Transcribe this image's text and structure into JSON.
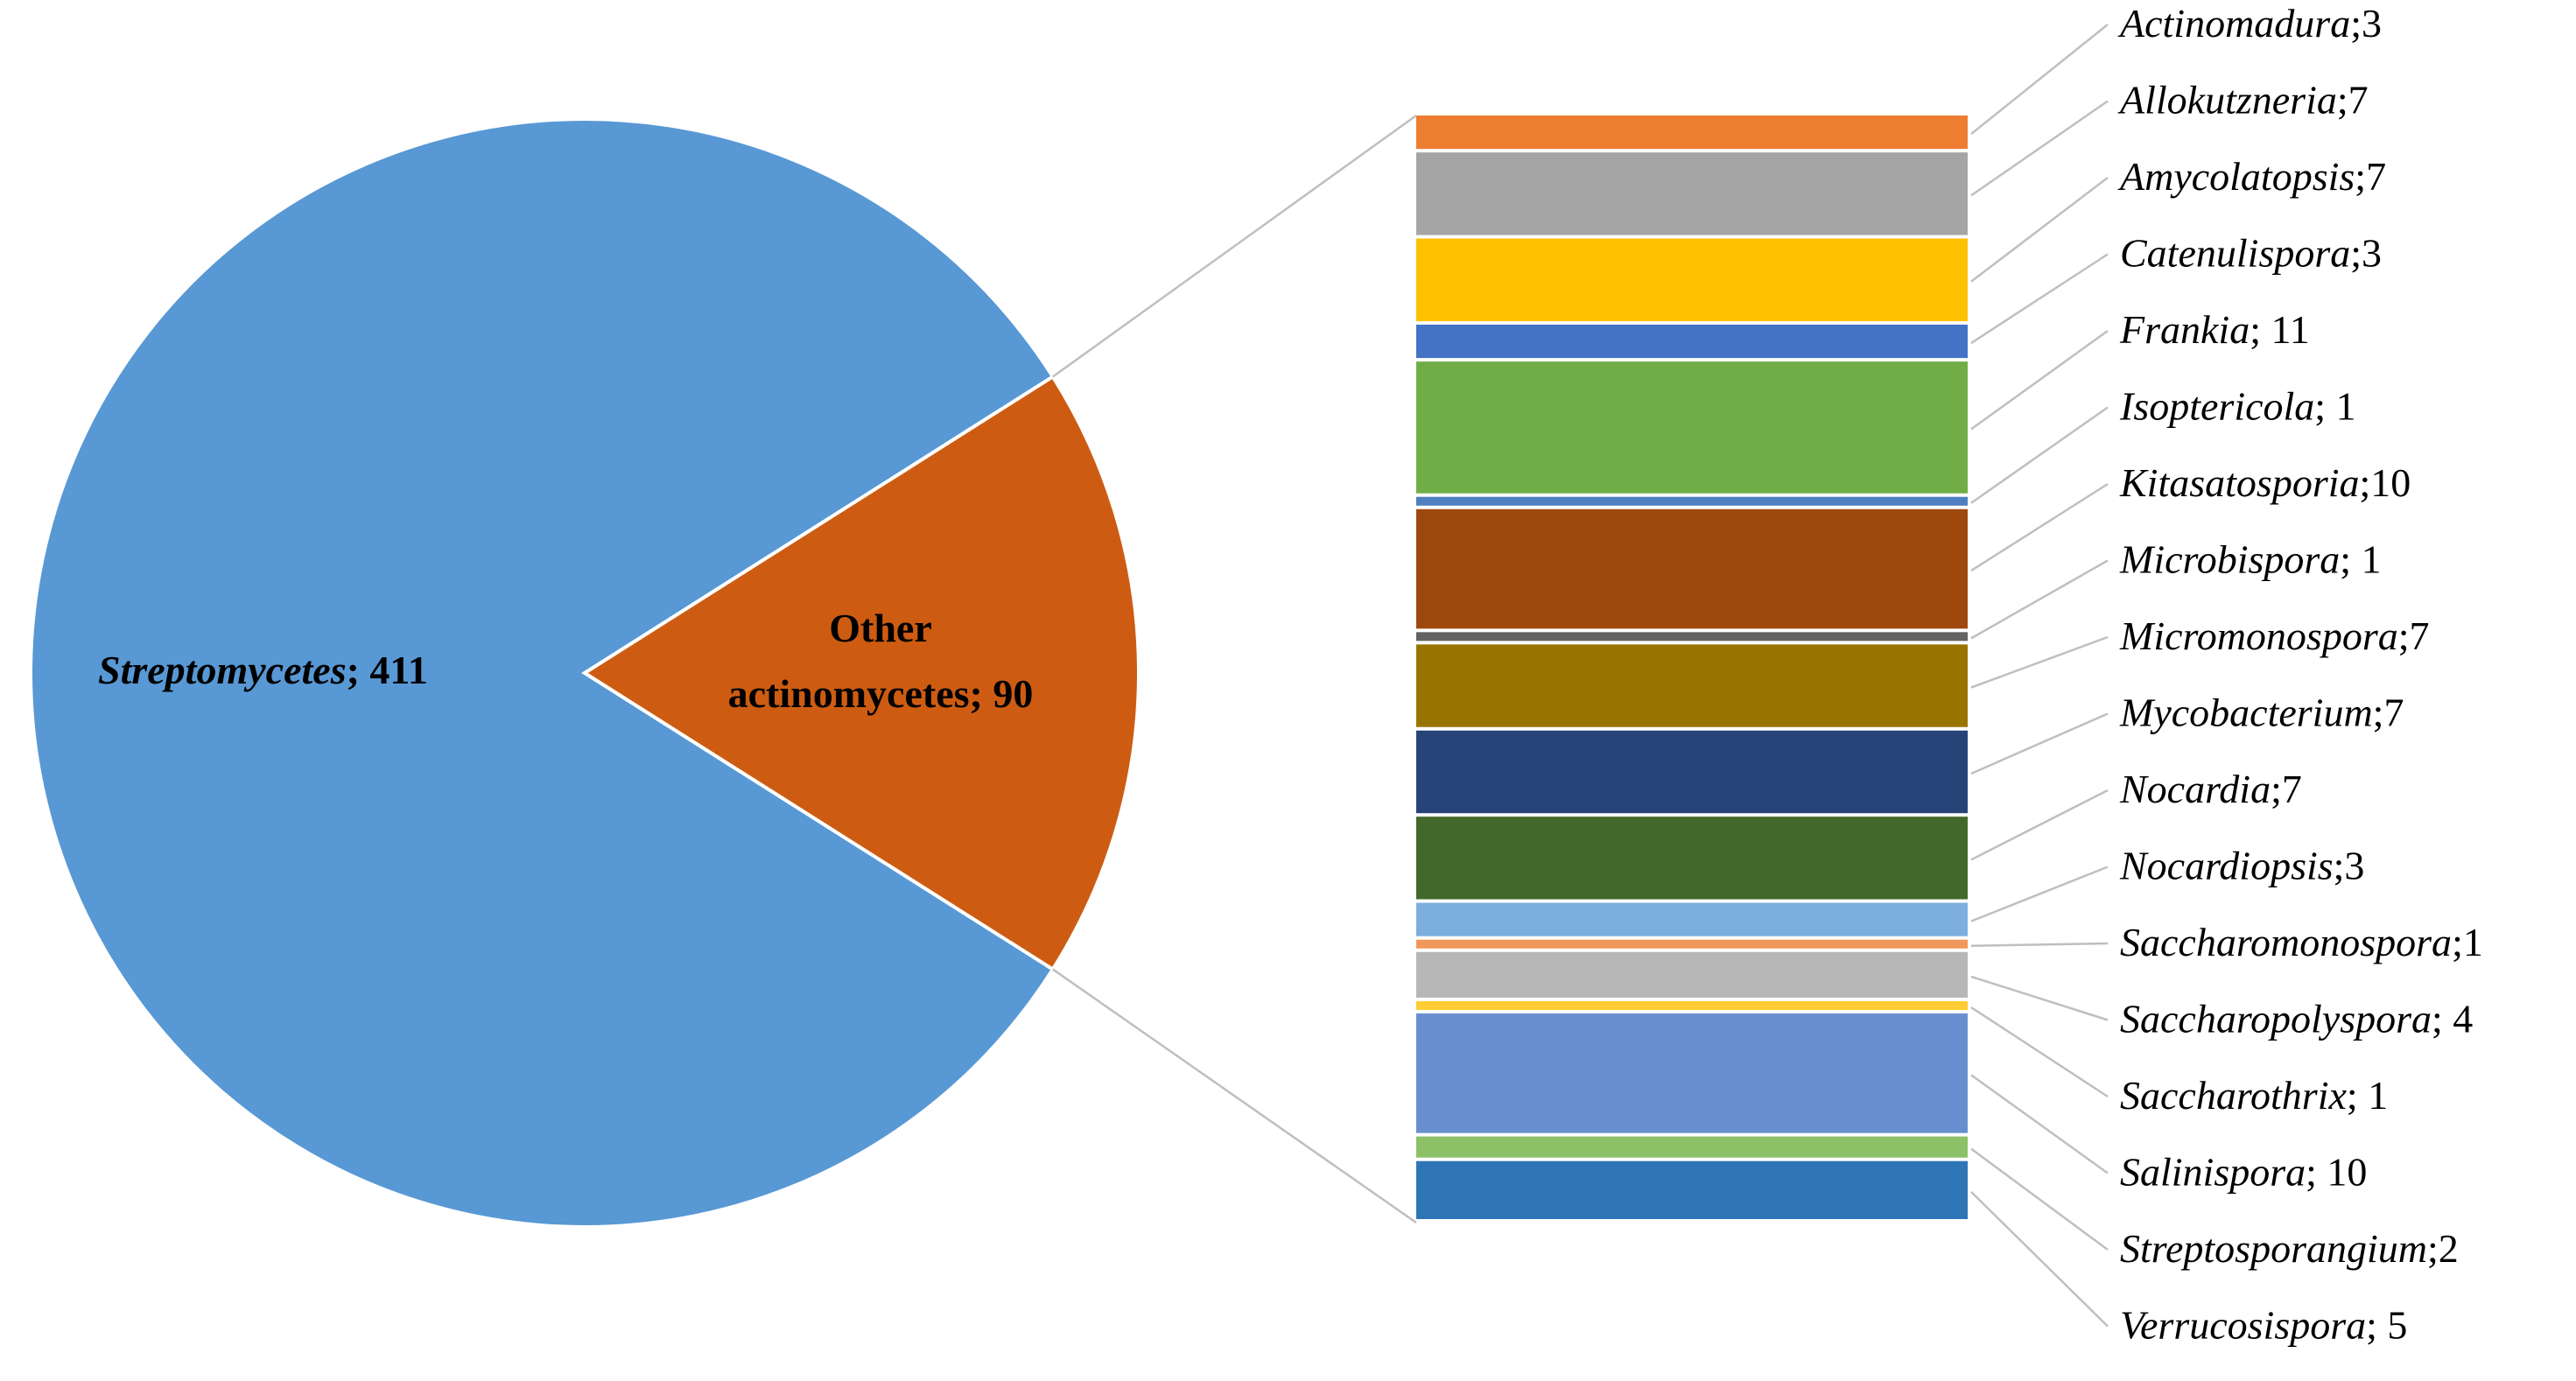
{
  "chart_data": {
    "type": "bar-of-pie",
    "pie": {
      "slices": [
        {
          "name": "Streptomycetes",
          "value": 411,
          "sep": "; ",
          "color": "#5898D4",
          "italic": true
        },
        {
          "name": "Other actinomycetes",
          "value": 90,
          "sep": "; ",
          "color": "#CD5C12",
          "italic": false
        }
      ]
    },
    "bar": {
      "parent": "Other actinomycetes",
      "items": [
        {
          "name": "Actinomadura",
          "sep": ";",
          "value": 3,
          "color": "#ED7D31"
        },
        {
          "name": "Allokutzneria",
          "sep": ";",
          "value": 7,
          "color": "#A5A5A5"
        },
        {
          "name": "Amycolatopsis",
          "sep": ";",
          "value": 7,
          "color": "#FFC000"
        },
        {
          "name": "Catenulispora",
          "sep": ";",
          "value": 3,
          "color": "#4472C4"
        },
        {
          "name": "Frankia",
          "sep": "; ",
          "value": 11,
          "color": "#70AD47"
        },
        {
          "name": "Isoptericola",
          "sep": "; ",
          "value": 1,
          "color": "#4F7FC0"
        },
        {
          "name": "Kitasatosporia",
          "sep": ";",
          "value": 10,
          "color": "#9E480E"
        },
        {
          "name": "Microbispora",
          "sep": "; ",
          "value": 1,
          "color": "#636363"
        },
        {
          "name": "Micromonospora",
          "sep": ";",
          "value": 7,
          "color": "#997300"
        },
        {
          "name": "Mycobacterium",
          "sep": ";",
          "value": 7,
          "color": "#264478"
        },
        {
          "name": "Nocardia",
          "sep": ";",
          "value": 7,
          "color": "#43682B"
        },
        {
          "name": "Nocardiopsis",
          "sep": ";",
          "value": 3,
          "color": "#7CAFDD"
        },
        {
          "name": "Saccharomonospora",
          "sep": ";",
          "value": 1,
          "color": "#F1975A"
        },
        {
          "name": "Saccharopolyspora",
          "sep": "; ",
          "value": 4,
          "color": "#B7B7B7"
        },
        {
          "name": "Saccharothrix",
          "sep": "; ",
          "value": 1,
          "color": "#FFCD33"
        },
        {
          "name": "Salinispora",
          "sep": "; ",
          "value": 10,
          "color": "#698ED0"
        },
        {
          "name": "Streptosporangium",
          "sep": ";",
          "value": 2,
          "color": "#8CC168"
        },
        {
          "name": "Verrucosispora",
          "sep": "; ",
          "value": 5,
          "color": "#2E75B6"
        }
      ]
    },
    "legend": "none",
    "grid": false
  }
}
